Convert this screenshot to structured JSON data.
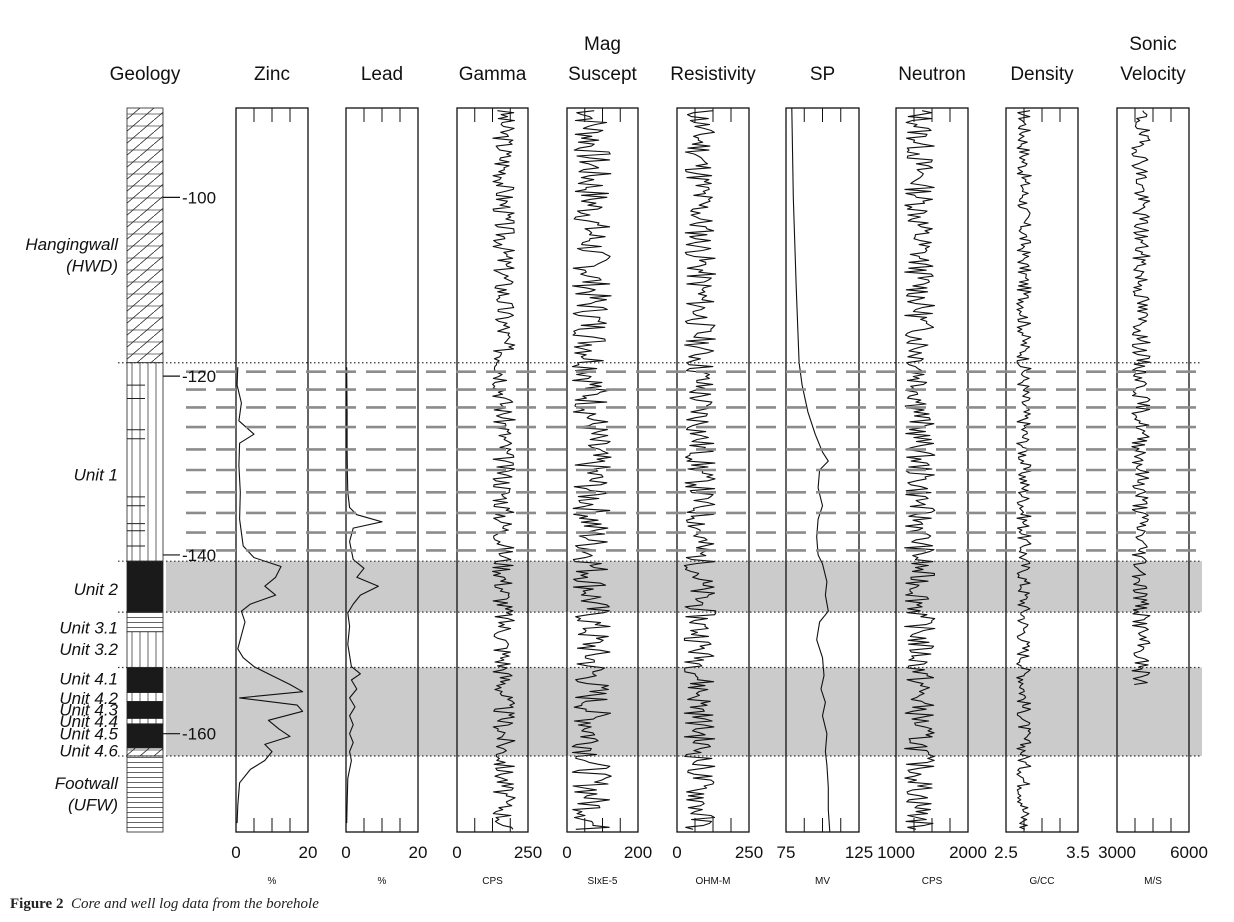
{
  "caption": {
    "label": "Figure 2",
    "text": "Core and well log data from the borehole"
  },
  "chart_data": {
    "type": "line",
    "title": "",
    "depth_axis": {
      "ticks": [
        -100,
        -120,
        -140,
        -160
      ],
      "tick_labels": [
        "-100",
        "-120",
        "-140",
        "-160"
      ],
      "range": [
        -90,
        -171
      ]
    },
    "geology_header": "Geology",
    "geology_labels": [
      {
        "text": "Hangingwall",
        "depth": -105.2
      },
      {
        "text": "(HWD)",
        "depth": -107.6
      },
      {
        "text": "Unit 1",
        "depth": -131
      },
      {
        "text": "Unit 2",
        "depth": -143.8
      },
      {
        "text": "Unit 3.1",
        "depth": -148.1
      },
      {
        "text": "Unit 3.2",
        "depth": -150.5
      },
      {
        "text": "Unit 4.1",
        "depth": -153.8
      },
      {
        "text": "Unit 4.2",
        "depth": -156
      },
      {
        "text": "Unit 4.3",
        "depth": -157.3
      },
      {
        "text": "Unit 4.4",
        "depth": -158.6
      },
      {
        "text": "Unit 4.5",
        "depth": -160
      },
      {
        "text": "Unit 4.6",
        "depth": -161.9
      },
      {
        "text": "Footwall",
        "depth": -165.5
      },
      {
        "text": "(UFW)",
        "depth": -167.9
      }
    ],
    "geology_column": [
      {
        "unit": "Hangingwall (HWD)",
        "top": -90,
        "bottom": -118.5,
        "pattern": "diagonal"
      },
      {
        "unit": "Unit 1",
        "top": -118.5,
        "bottom": -140.7,
        "pattern": "vertical"
      },
      {
        "unit": "Unit 2",
        "top": -140.7,
        "bottom": -146.4,
        "pattern": "solid"
      },
      {
        "unit": "Unit 3.1",
        "top": -146.4,
        "bottom": -148.6,
        "pattern": "horizontal"
      },
      {
        "unit": "Unit 3.2",
        "top": -148.6,
        "bottom": -152.6,
        "pattern": "vertical"
      },
      {
        "unit": "Unit 4.1",
        "top": -152.6,
        "bottom": -155.4,
        "pattern": "solid"
      },
      {
        "unit": "Unit 4.2",
        "top": -155.4,
        "bottom": -156.4,
        "pattern": "vertical"
      },
      {
        "unit": "Unit 4.3",
        "top": -156.4,
        "bottom": -158.3,
        "pattern": "solid"
      },
      {
        "unit": "Unit 4.4",
        "top": -158.3,
        "bottom": -158.9,
        "pattern": "vertical"
      },
      {
        "unit": "Unit 4.5",
        "top": -158.9,
        "bottom": -161.6,
        "pattern": "solid"
      },
      {
        "unit": "Unit 4.6",
        "top": -161.6,
        "bottom": -162.5,
        "pattern": "diagonal"
      },
      {
        "unit": "Footwall (UFW)",
        "top": -162.5,
        "bottom": -171,
        "pattern": "horizontal"
      }
    ],
    "shaded_zones": [
      {
        "top": -140.7,
        "bottom": -146.4
      },
      {
        "top": -152.6,
        "bottom": -162.5
      }
    ],
    "dotted_lines": [
      -118.5,
      -140.7,
      -146.4,
      -152.6,
      -162.5
    ],
    "dashed_lines": [
      -119.5,
      -121.5,
      -123.5,
      -125.7,
      -128.2,
      -130.5,
      -133,
      -135.3,
      -137.5,
      -139.5
    ],
    "tracks": [
      {
        "name": "Zinc",
        "title": [
          "Zinc"
        ],
        "unit": "%",
        "range": [
          0,
          20
        ],
        "tick_labels": [
          "0",
          "20"
        ],
        "samples": [
          {
            "d": -119,
            "v": 0.5
          },
          {
            "d": -121,
            "v": 0.3
          },
          {
            "d": -123,
            "v": 1.5
          },
          {
            "d": -125,
            "v": 0.8
          },
          {
            "d": -126.5,
            "v": 5
          },
          {
            "d": -127.5,
            "v": 1
          },
          {
            "d": -130,
            "v": 0.8
          },
          {
            "d": -133,
            "v": 1.2
          },
          {
            "d": -136,
            "v": 1
          },
          {
            "d": -139,
            "v": 2
          },
          {
            "d": -140.3,
            "v": 5
          },
          {
            "d": -141.3,
            "v": 12.5
          },
          {
            "d": -142.5,
            "v": 11
          },
          {
            "d": -143.5,
            "v": 8
          },
          {
            "d": -144.5,
            "v": 11
          },
          {
            "d": -145.5,
            "v": 4
          },
          {
            "d": -146.3,
            "v": 1.5
          },
          {
            "d": -147.5,
            "v": 2.5
          },
          {
            "d": -149,
            "v": 1.5
          },
          {
            "d": -150.5,
            "v": 0.5
          },
          {
            "d": -151.5,
            "v": 2
          },
          {
            "d": -152.5,
            "v": 5
          },
          {
            "d": -153.5,
            "v": 10
          },
          {
            "d": -154.5,
            "v": 15
          },
          {
            "d": -155.3,
            "v": 18.5
          },
          {
            "d": -156,
            "v": 1
          },
          {
            "d": -156.8,
            "v": 17
          },
          {
            "d": -157.5,
            "v": 18.5
          },
          {
            "d": -158.5,
            "v": 9
          },
          {
            "d": -159.5,
            "v": 12
          },
          {
            "d": -160.3,
            "v": 15
          },
          {
            "d": -161.2,
            "v": 8
          },
          {
            "d": -162,
            "v": 10
          },
          {
            "d": -163,
            "v": 8
          },
          {
            "d": -164,
            "v": 4
          },
          {
            "d": -165.5,
            "v": 1
          },
          {
            "d": -168,
            "v": 0.5
          },
          {
            "d": -170,
            "v": 0.3
          }
        ]
      },
      {
        "name": "Lead",
        "title": [
          "Lead"
        ],
        "unit": "%",
        "range": [
          0,
          20
        ],
        "tick_labels": [
          "0",
          "20"
        ],
        "samples": [
          {
            "d": -119,
            "v": 0.2
          },
          {
            "d": -124,
            "v": 0.3
          },
          {
            "d": -128,
            "v": 0.3
          },
          {
            "d": -131,
            "v": 0.4
          },
          {
            "d": -133,
            "v": 0.5
          },
          {
            "d": -134.7,
            "v": 1
          },
          {
            "d": -135.5,
            "v": 3
          },
          {
            "d": -136.3,
            "v": 10
          },
          {
            "d": -137,
            "v": 2
          },
          {
            "d": -138.5,
            "v": 1
          },
          {
            "d": -140.5,
            "v": 2
          },
          {
            "d": -141.5,
            "v": 5
          },
          {
            "d": -142.5,
            "v": 3
          },
          {
            "d": -143.5,
            "v": 9
          },
          {
            "d": -144.5,
            "v": 4
          },
          {
            "d": -145.5,
            "v": 2
          },
          {
            "d": -146.5,
            "v": 0.5
          },
          {
            "d": -148,
            "v": 1
          },
          {
            "d": -150,
            "v": 0.5
          },
          {
            "d": -152.5,
            "v": 1.5
          },
          {
            "d": -153.3,
            "v": 4
          },
          {
            "d": -154,
            "v": 1.5
          },
          {
            "d": -155,
            "v": 3
          },
          {
            "d": -156,
            "v": 1
          },
          {
            "d": -157,
            "v": 2.5
          },
          {
            "d": -158,
            "v": 1
          },
          {
            "d": -159,
            "v": 2
          },
          {
            "d": -160,
            "v": 1
          },
          {
            "d": -161,
            "v": 2
          },
          {
            "d": -162,
            "v": 1
          },
          {
            "d": -163,
            "v": 1.5
          },
          {
            "d": -165,
            "v": 0.5
          },
          {
            "d": -168,
            "v": 0.3
          },
          {
            "d": -170,
            "v": 0.2
          }
        ]
      },
      {
        "name": "Gamma",
        "title": [
          "Gamma"
        ],
        "unit": "CPS",
        "range": [
          0,
          250
        ],
        "tick_labels": [
          "0",
          "250"
        ],
        "wiggle_center": 165,
        "wiggle_amplitude": 40,
        "wiggle_seed": 3
      },
      {
        "name": "Mag Suscept",
        "title": [
          "Mag",
          "Suscept"
        ],
        "unit": "SIxE-5",
        "range": [
          0,
          200
        ],
        "tick_labels": [
          "0",
          "200"
        ],
        "wiggle_center": 70,
        "wiggle_amplitude": 55,
        "wiggle_seed": 7
      },
      {
        "name": "Resistivity",
        "title": [
          "Resistivity"
        ],
        "unit": "OHM-M",
        "range": [
          0,
          250
        ],
        "tick_labels": [
          "0",
          "250"
        ],
        "wiggle_center": 80,
        "wiggle_amplitude": 55,
        "wiggle_seed": 11
      },
      {
        "name": "SP",
        "title": [
          "SP"
        ],
        "unit": "MV",
        "range": [
          75,
          125
        ],
        "tick_labels": [
          "75",
          "125"
        ],
        "samples": [
          {
            "d": -90,
            "v": 79
          },
          {
            "d": -100,
            "v": 80
          },
          {
            "d": -110,
            "v": 82
          },
          {
            "d": -118.5,
            "v": 84
          },
          {
            "d": -121,
            "v": 86
          },
          {
            "d": -124,
            "v": 90
          },
          {
            "d": -126.5,
            "v": 95
          },
          {
            "d": -128.5,
            "v": 100
          },
          {
            "d": -129.5,
            "v": 104
          },
          {
            "d": -130.5,
            "v": 98
          },
          {
            "d": -132.5,
            "v": 97
          },
          {
            "d": -134.5,
            "v": 100
          },
          {
            "d": -136,
            "v": 97
          },
          {
            "d": -138,
            "v": 96
          },
          {
            "d": -140,
            "v": 97
          },
          {
            "d": -141,
            "v": 100
          },
          {
            "d": -143,
            "v": 103
          },
          {
            "d": -144.5,
            "v": 102
          },
          {
            "d": -146.3,
            "v": 104
          },
          {
            "d": -147.5,
            "v": 98
          },
          {
            "d": -149.5,
            "v": 96
          },
          {
            "d": -151.5,
            "v": 100
          },
          {
            "d": -153.5,
            "v": 101
          },
          {
            "d": -155,
            "v": 99
          },
          {
            "d": -156.5,
            "v": 102
          },
          {
            "d": -158,
            "v": 100
          },
          {
            "d": -160,
            "v": 103
          },
          {
            "d": -162,
            "v": 102
          },
          {
            "d": -163.5,
            "v": 103
          },
          {
            "d": -166,
            "v": 104
          },
          {
            "d": -168.5,
            "v": 104
          },
          {
            "d": -171,
            "v": 105
          }
        ]
      },
      {
        "name": "Neutron",
        "title": [
          "Neutron"
        ],
        "unit": "CPS",
        "range": [
          1000,
          2000
        ],
        "tick_labels": [
          "1000",
          "2000"
        ],
        "wiggle_center": 1330,
        "wiggle_amplitude": 210,
        "wiggle_seed": 13
      },
      {
        "name": "Density",
        "title": [
          "Density"
        ],
        "unit": "G/CC",
        "range": [
          2.5,
          3.5
        ],
        "tick_labels": [
          "2.5",
          "3.5"
        ],
        "wiggle_center": 2.75,
        "wiggle_amplitude": 0.1,
        "wiggle_seed": 17
      },
      {
        "name": "Sonic Velocity",
        "title": [
          "Sonic",
          "Velocity"
        ],
        "unit": "M/S",
        "range": [
          3000,
          6000
        ],
        "tick_labels": [
          "3000",
          "6000"
        ],
        "wiggle_center": 4000,
        "wiggle_amplitude": 380,
        "wiggle_seed": 19,
        "data_bottom": -154.5
      }
    ]
  }
}
